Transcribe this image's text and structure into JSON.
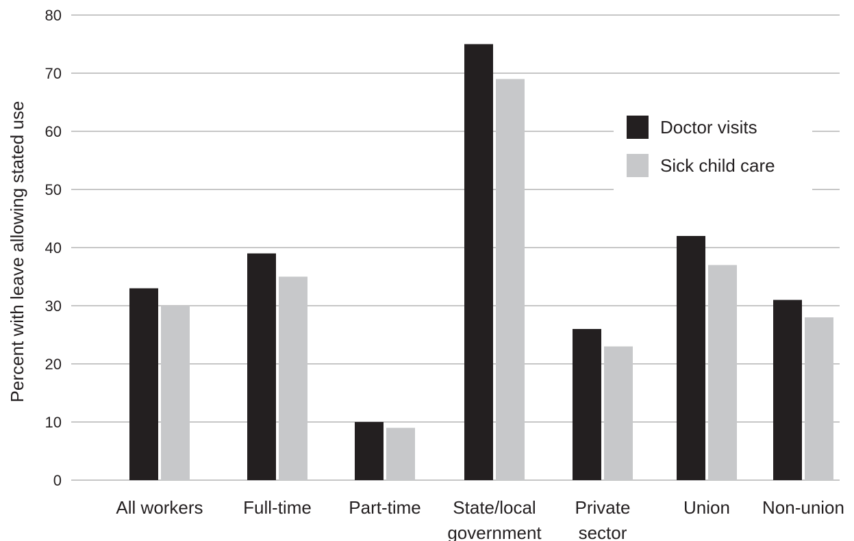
{
  "chart_data": {
    "type": "bar",
    "title": "",
    "xlabel": "",
    "ylabel": "Percent with leave allowing stated use",
    "categories": [
      [
        "All workers"
      ],
      [
        "Full-time"
      ],
      [
        "Part-time"
      ],
      [
        "State/local",
        "government"
      ],
      [
        "Private",
        "sector"
      ],
      [
        "Union"
      ],
      [
        "Non-union"
      ]
    ],
    "series": [
      {
        "name": "Doctor visits",
        "color": "#231f20",
        "values": [
          33,
          39,
          10,
          75,
          26,
          42,
          31
        ]
      },
      {
        "name": "Sick child care",
        "color": "#c7c8ca",
        "values": [
          30,
          35,
          9,
          69,
          23,
          37,
          28
        ]
      }
    ],
    "ylim": [
      0,
      80
    ],
    "yticks": [
      0,
      10,
      20,
      30,
      40,
      50,
      60,
      70,
      80
    ],
    "grid": true,
    "gridline_color": "#8c8c8c",
    "legend_position": "top-right"
  }
}
